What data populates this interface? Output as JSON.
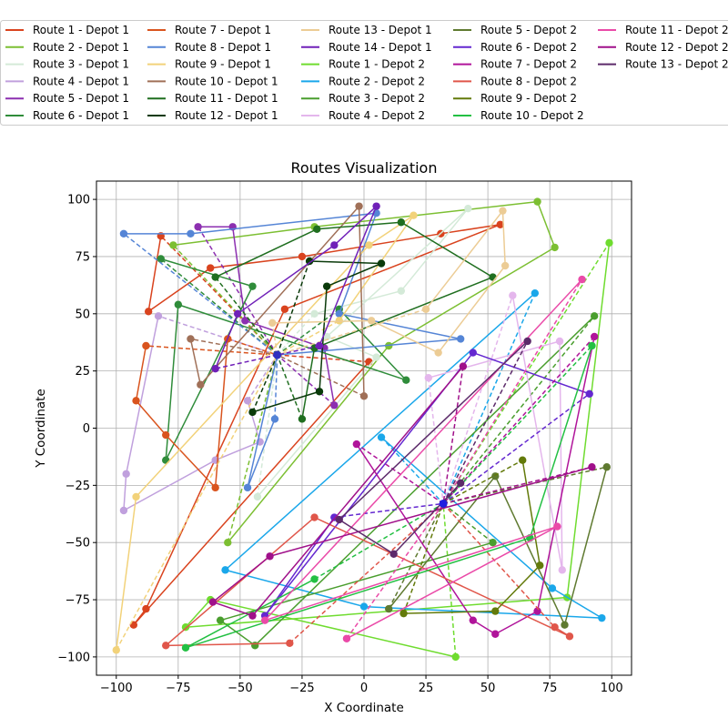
{
  "chart_data": {
    "type": "line",
    "title": "Routes Visualization",
    "xlabel": "X Coordinate",
    "ylabel": "Y Coordinate",
    "xlim": [
      -108,
      108
    ],
    "ylim": [
      -108,
      108
    ],
    "xticks": [
      -100,
      -75,
      -50,
      -25,
      0,
      25,
      50,
      75,
      100
    ],
    "yticks": [
      -100,
      -75,
      -50,
      -25,
      0,
      25,
      50,
      75,
      100
    ],
    "grid": true,
    "legend_position": "top",
    "legend_columns": 5,
    "depots": {
      "Depot 1": [
        -35,
        32
      ],
      "Depot 2": [
        32,
        -33
      ]
    },
    "series": [
      {
        "name": "Route 1 - Depot 1",
        "color": "#d9431e",
        "depot": "Depot 1",
        "points": [
          [
            -35,
            32
          ],
          [
            -82,
            84
          ],
          [
            -87,
            51
          ],
          [
            -62,
            70
          ],
          [
            -25,
            75
          ],
          [
            31,
            85
          ],
          [
            55,
            89
          ],
          [
            -32,
            52
          ],
          [
            -88,
            -79
          ],
          [
            -93,
            -86
          ],
          [
            2,
            29
          ],
          [
            -35,
            32
          ]
        ]
      },
      {
        "name": "Route 2 - Depot 1",
        "color": "#7cbf32",
        "depot": "Depot 1",
        "points": [
          [
            -35,
            32
          ],
          [
            -77,
            80
          ],
          [
            -20,
            88
          ],
          [
            70,
            99
          ],
          [
            77,
            79
          ],
          [
            10,
            36
          ],
          [
            -55,
            -50
          ],
          [
            -35,
            32
          ]
        ]
      },
      {
        "name": "Route 3 - Depot 1",
        "color": "#d4ead8",
        "depot": "Depot 1",
        "points": [
          [
            -35,
            32
          ],
          [
            -20,
            50
          ],
          [
            15,
            60
          ],
          [
            42,
            96
          ],
          [
            -15,
            40
          ],
          [
            5,
            31
          ],
          [
            -43,
            -30
          ],
          [
            -35,
            32
          ]
        ]
      },
      {
        "name": "Route 4 - Depot 1",
        "color": "#c0a0dd",
        "depot": "Depot 1",
        "points": [
          [
            -35,
            32
          ],
          [
            -83,
            49
          ],
          [
            -96,
            -20
          ],
          [
            -97,
            -36
          ],
          [
            -60,
            -14
          ],
          [
            -42,
            -6
          ],
          [
            -47,
            12
          ],
          [
            -35,
            32
          ]
        ]
      },
      {
        "name": "Route 5 - Depot 1",
        "color": "#8c2fb0",
        "depot": "Depot 1",
        "points": [
          [
            -35,
            32
          ],
          [
            -67,
            88
          ],
          [
            -53,
            88
          ],
          [
            -48,
            47
          ],
          [
            -16,
            35
          ],
          [
            -12,
            10
          ],
          [
            -35,
            32
          ]
        ]
      },
      {
        "name": "Route 6 - Depot 1",
        "color": "#2f8c3a",
        "depot": "Depot 1",
        "points": [
          [
            -35,
            32
          ],
          [
            -82,
            74
          ],
          [
            -45,
            62
          ],
          [
            -80,
            -14
          ],
          [
            -75,
            54
          ],
          [
            17,
            21
          ],
          [
            -10,
            52
          ],
          [
            -35,
            32
          ]
        ]
      },
      {
        "name": "Route 7 - Depot 1",
        "color": "#d9541e",
        "depot": "Depot 1",
        "points": [
          [
            -35,
            32
          ],
          [
            -88,
            36
          ],
          [
            -92,
            12
          ],
          [
            -80,
            -3
          ],
          [
            -60,
            -26
          ],
          [
            -55,
            39
          ],
          [
            -35,
            32
          ]
        ]
      },
      {
        "name": "Route 8 - Depot 1",
        "color": "#5585d6",
        "depot": "Depot 1",
        "points": [
          [
            -35,
            32
          ],
          [
            -97,
            85
          ],
          [
            -70,
            85
          ],
          [
            5,
            94
          ],
          [
            -10,
            50
          ],
          [
            39,
            39
          ],
          [
            -35,
            32
          ],
          [
            -47,
            -26
          ],
          [
            -36,
            4
          ],
          [
            -35,
            32
          ]
        ]
      },
      {
        "name": "Route 9 - Depot 1",
        "color": "#f2d27a",
        "depot": "Depot 1",
        "points": [
          [
            -35,
            32
          ],
          [
            -10,
            47
          ],
          [
            20,
            93
          ],
          [
            2,
            80
          ],
          [
            -92,
            -30
          ],
          [
            -100,
            -97
          ],
          [
            -35,
            32
          ]
        ]
      },
      {
        "name": "Route 10 - Depot 1",
        "color": "#a07058",
        "depot": "Depot 1",
        "points": [
          [
            -35,
            32
          ],
          [
            -70,
            39
          ],
          [
            -66,
            19
          ],
          [
            -2,
            97
          ],
          [
            0,
            14
          ],
          [
            -35,
            32
          ]
        ]
      },
      {
        "name": "Route 11 - Depot 1",
        "color": "#1f6e1f",
        "depot": "Depot 1",
        "points": [
          [
            -35,
            32
          ],
          [
            -60,
            66
          ],
          [
            -19,
            87
          ],
          [
            15,
            90
          ],
          [
            52,
            66
          ],
          [
            -20,
            35
          ],
          [
            -25,
            4
          ],
          [
            -35,
            32
          ]
        ]
      },
      {
        "name": "Route 12 - Depot 1",
        "color": "#0a3a0a",
        "depot": "Depot 1",
        "points": [
          [
            -35,
            32
          ],
          [
            -22,
            73
          ],
          [
            7,
            72
          ],
          [
            -15,
            62
          ],
          [
            -18,
            16
          ],
          [
            -45,
            7
          ],
          [
            -35,
            32
          ]
        ]
      },
      {
        "name": "Route 13 - Depot 1",
        "color": "#eccc95",
        "depot": "Depot 1",
        "points": [
          [
            -35,
            32
          ],
          [
            -37,
            46
          ],
          [
            3,
            47
          ],
          [
            30,
            33
          ],
          [
            57,
            71
          ],
          [
            56,
            95
          ],
          [
            25,
            52
          ],
          [
            -35,
            32
          ]
        ]
      },
      {
        "name": "Route 14 - Depot 1",
        "color": "#7020b8",
        "depot": "Depot 1",
        "points": [
          [
            -35,
            32
          ],
          [
            -60,
            26
          ],
          [
            -51,
            50
          ],
          [
            -12,
            80
          ],
          [
            5,
            97
          ],
          [
            -18,
            36
          ],
          [
            -35,
            32
          ]
        ]
      },
      {
        "name": "Route 1 - Depot 2",
        "color": "#6fdc2f",
        "depot": "Depot 2",
        "points": [
          [
            32,
            -33
          ],
          [
            99,
            81
          ],
          [
            82,
            -74
          ],
          [
            -72,
            -87
          ],
          [
            -62,
            -75
          ],
          [
            37,
            -100
          ],
          [
            32,
            -33
          ]
        ]
      },
      {
        "name": "Route 2 - Depot 2",
        "color": "#1aa7ea",
        "depot": "Depot 2",
        "points": [
          [
            32,
            -33
          ],
          [
            69,
            59
          ],
          [
            -56,
            -62
          ],
          [
            0,
            -78
          ],
          [
            96,
            -83
          ],
          [
            76,
            -70
          ],
          [
            7,
            -4
          ],
          [
            32,
            -33
          ]
        ]
      },
      {
        "name": "Route 3 - Depot 2",
        "color": "#4a9e2e",
        "depot": "Depot 2",
        "points": [
          [
            32,
            -33
          ],
          [
            93,
            49
          ],
          [
            -44,
            -95
          ],
          [
            -58,
            -84
          ],
          [
            52,
            -50
          ],
          [
            32,
            -33
          ]
        ]
      },
      {
        "name": "Route 4 - Depot 2",
        "color": "#e4b6ec",
        "depot": "Depot 2",
        "points": [
          [
            32,
            -33
          ],
          [
            60,
            58
          ],
          [
            80,
            -62
          ],
          [
            79,
            38
          ],
          [
            26,
            22
          ],
          [
            32,
            -33
          ]
        ]
      },
      {
        "name": "Route 5 - Depot 2",
        "color": "#5f7a30",
        "depot": "Depot 2",
        "points": [
          [
            32,
            -33
          ],
          [
            98,
            -17
          ],
          [
            81,
            -86
          ],
          [
            53,
            -21
          ],
          [
            10,
            -79
          ],
          [
            32,
            -33
          ]
        ]
      },
      {
        "name": "Route 6 - Depot 2",
        "color": "#6428d0",
        "depot": "Depot 2",
        "points": [
          [
            32,
            -33
          ],
          [
            91,
            15
          ],
          [
            44,
            33
          ],
          [
            -40,
            -82
          ],
          [
            -12,
            -39
          ],
          [
            32,
            -33
          ]
        ]
      },
      {
        "name": "Route 7 - Depot 2",
        "color": "#b0149a",
        "depot": "Depot 2",
        "points": [
          [
            32,
            -33
          ],
          [
            -3,
            -7
          ],
          [
            44,
            -84
          ],
          [
            53,
            -90
          ],
          [
            70,
            -80
          ],
          [
            93,
            40
          ],
          [
            32,
            -33
          ]
        ]
      },
      {
        "name": "Route 8 - Depot 2",
        "color": "#e0564a",
        "depot": "Depot 2",
        "points": [
          [
            32,
            -33
          ],
          [
            77,
            -87
          ],
          [
            83,
            -91
          ],
          [
            -20,
            -39
          ],
          [
            -80,
            -95
          ],
          [
            -30,
            -94
          ],
          [
            32,
            -33
          ]
        ]
      },
      {
        "name": "Route 9 - Depot 2",
        "color": "#637a0a",
        "depot": "Depot 2",
        "points": [
          [
            32,
            -33
          ],
          [
            64,
            -14
          ],
          [
            71,
            -60
          ],
          [
            53,
            -80
          ],
          [
            16,
            -81
          ],
          [
            32,
            -33
          ]
        ]
      },
      {
        "name": "Route 10 - Depot 2",
        "color": "#23c043",
        "depot": "Depot 2",
        "points": [
          [
            32,
            -33
          ],
          [
            92,
            36
          ],
          [
            67,
            -48
          ],
          [
            -72,
            -96
          ],
          [
            -20,
            -66
          ],
          [
            32,
            -33
          ]
        ]
      },
      {
        "name": "Route 11 - Depot 2",
        "color": "#ea4aa8",
        "depot": "Depot 2",
        "points": [
          [
            32,
            -33
          ],
          [
            88,
            65
          ],
          [
            -40,
            -84
          ],
          [
            78,
            -43
          ],
          [
            -7,
            -92
          ],
          [
            32,
            -33
          ]
        ]
      },
      {
        "name": "Route 12 - Depot 2",
        "color": "#a0108a",
        "depot": "Depot 2",
        "points": [
          [
            32,
            -33
          ],
          [
            92,
            -17
          ],
          [
            -38,
            -56
          ],
          [
            -61,
            -76
          ],
          [
            -45,
            -82
          ],
          [
            40,
            27
          ],
          [
            32,
            -33
          ]
        ]
      },
      {
        "name": "Route 13 - Depot 2",
        "color": "#5c2a6a",
        "depot": "Depot 2",
        "points": [
          [
            32,
            -33
          ],
          [
            66,
            38
          ],
          [
            -10,
            -40
          ],
          [
            12,
            -55
          ],
          [
            39,
            -24
          ],
          [
            32,
            -33
          ]
        ]
      }
    ]
  }
}
